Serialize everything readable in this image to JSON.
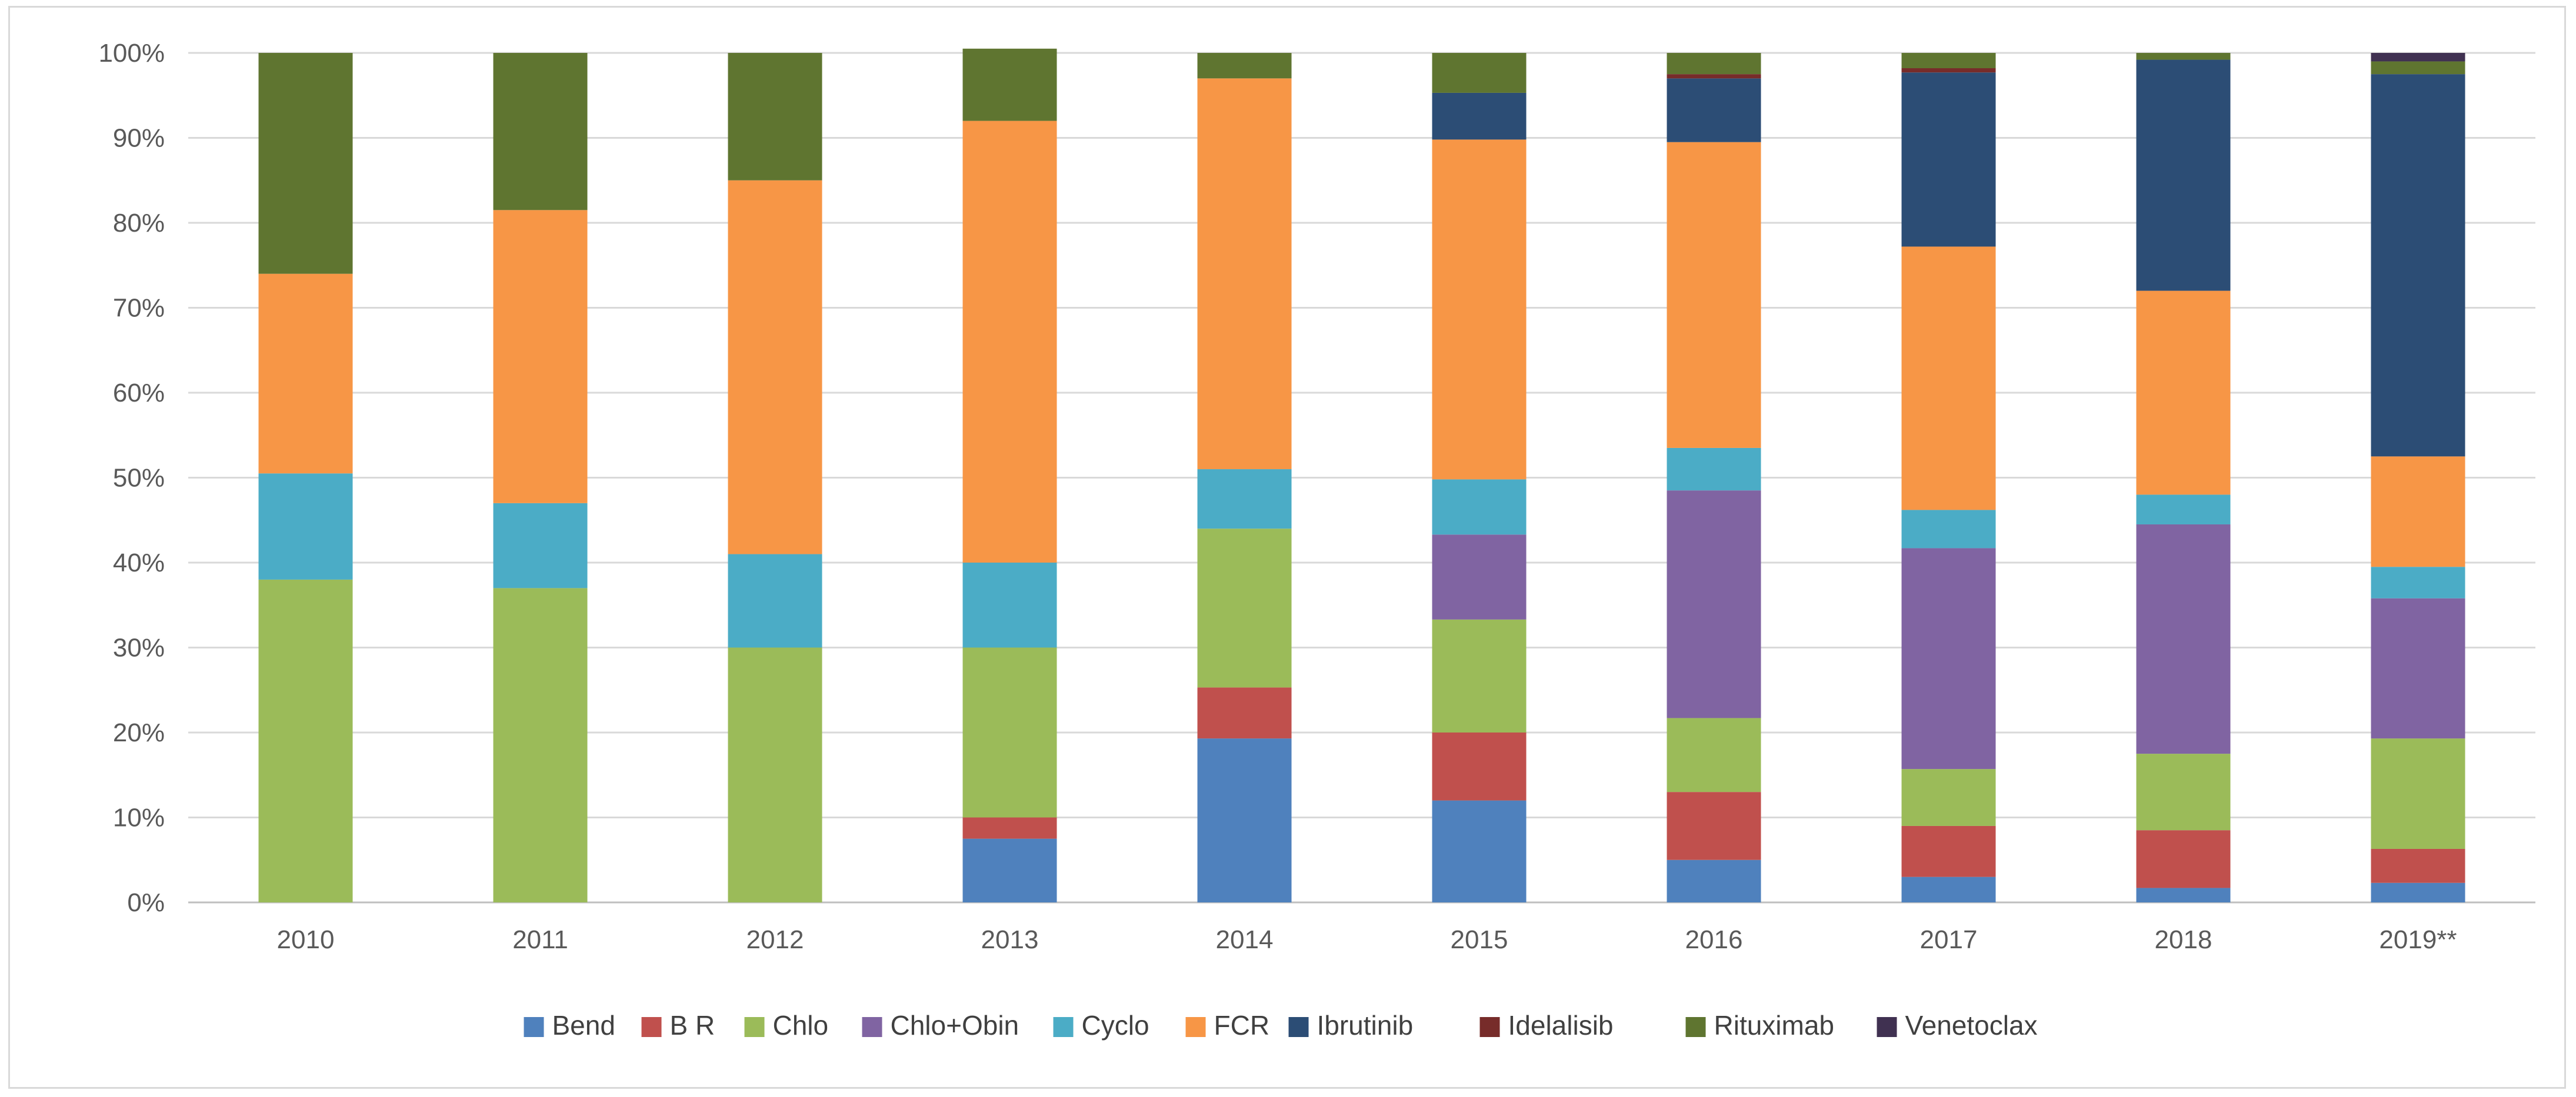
{
  "chart_data": {
    "type": "bar",
    "stacked": true,
    "percent": true,
    "title": "",
    "xlabel": "",
    "ylabel": "",
    "ylim": [
      0,
      100
    ],
    "yticks": [
      "0%",
      "10%",
      "20%",
      "30%",
      "40%",
      "50%",
      "60%",
      "70%",
      "80%",
      "90%",
      "100%"
    ],
    "categories": [
      "2010",
      "2011",
      "2012",
      "2013",
      "2014",
      "2015",
      "2016",
      "2017",
      "2018",
      "2019**"
    ],
    "legend_position": "bottom",
    "grid": true,
    "series": [
      {
        "name": "Bend",
        "color": "#4f81bd",
        "values": [
          0,
          0,
          0,
          7.5,
          19.3,
          12.0,
          5.0,
          3.0,
          1.7,
          2.3
        ]
      },
      {
        "name": "B R",
        "color": "#c0504d",
        "values": [
          0,
          0,
          0,
          2.5,
          6.0,
          8.0,
          8.0,
          6.0,
          6.8,
          4.0
        ]
      },
      {
        "name": "Chlo",
        "color": "#9bbb59",
        "values": [
          38.0,
          37.0,
          30.0,
          20.0,
          18.7,
          13.3,
          8.7,
          6.7,
          9.0,
          13.0
        ]
      },
      {
        "name": "Chlo+Obin",
        "color": "#8064a2",
        "values": [
          0,
          0,
          0,
          0,
          0,
          10.0,
          26.8,
          26.0,
          27.0,
          16.5
        ]
      },
      {
        "name": "Cyclo",
        "color": "#4bacc6",
        "values": [
          12.5,
          10.0,
          11.0,
          10.0,
          7.0,
          6.5,
          5.0,
          4.5,
          3.5,
          3.7
        ]
      },
      {
        "name": "FCR",
        "color": "#f79646",
        "values": [
          23.5,
          34.5,
          44.0,
          52.0,
          46.0,
          40.0,
          36.0,
          31.0,
          24.0,
          13.0
        ]
      },
      {
        "name": "Ibrutinib",
        "color": "#2c4d75",
        "values": [
          0,
          0,
          0,
          0,
          0,
          5.5,
          7.5,
          20.5,
          27.2,
          45.0
        ]
      },
      {
        "name": "Idelalisib",
        "color": "#772c2a",
        "values": [
          0,
          0,
          0,
          0,
          0,
          0,
          0.5,
          0.5,
          0,
          0
        ]
      },
      {
        "name": "Rituximab",
        "color": "#5f7530",
        "values": [
          26.0,
          18.5,
          15.0,
          8.5,
          3.0,
          4.7,
          2.5,
          1.8,
          0.8,
          1.5
        ]
      },
      {
        "name": "Venetoclax",
        "color": "#403151",
        "values": [
          0,
          0,
          0,
          0,
          0,
          0,
          0,
          0,
          0,
          1.0
        ]
      }
    ]
  }
}
